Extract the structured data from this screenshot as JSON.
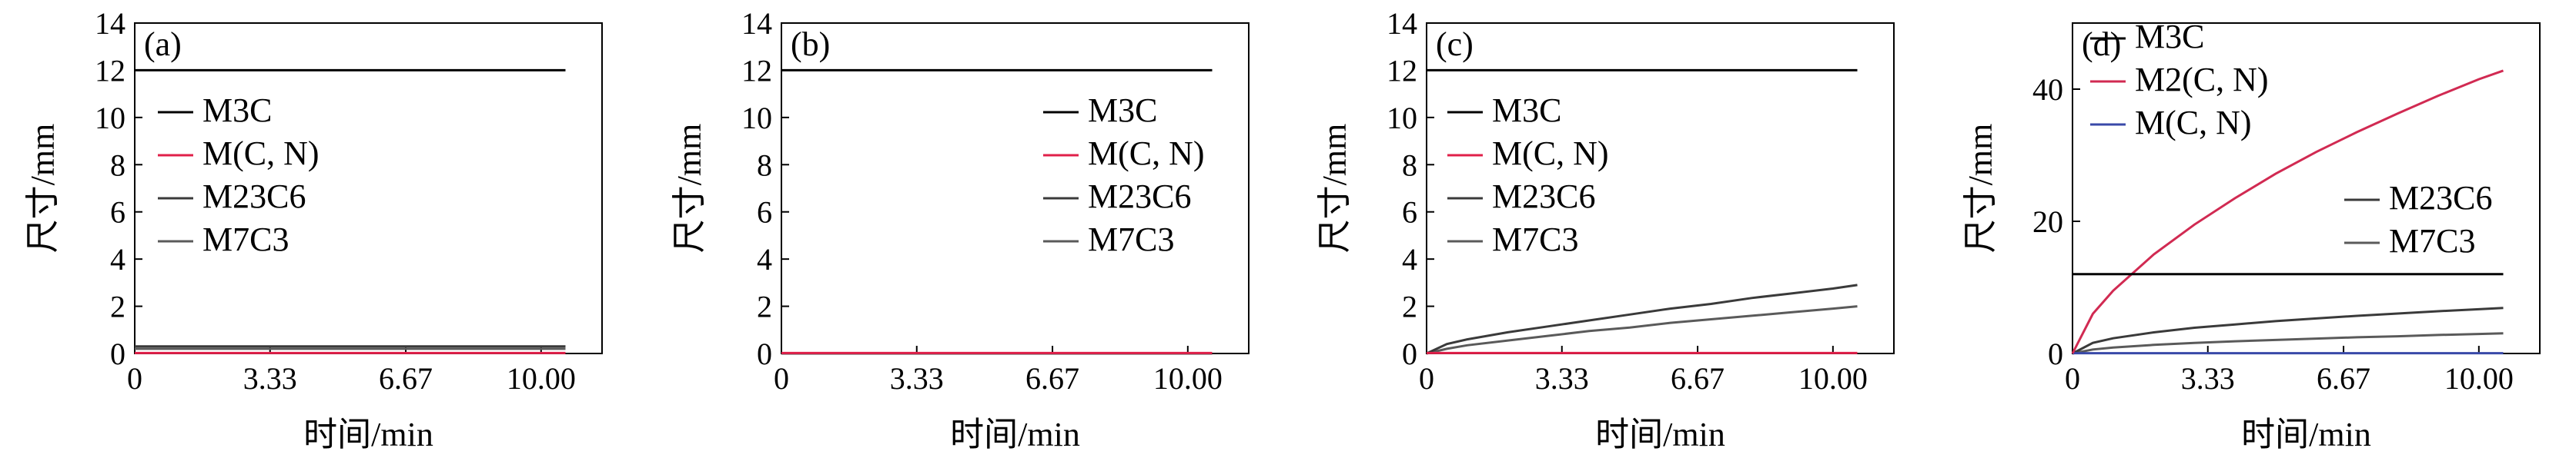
{
  "colors": {
    "M3C": "#000000",
    "M(C, N)": "#e0204a",
    "M2(C, N)": "#d12a52",
    "M(C, N)_d": "#3949a8",
    "M23C6": "#3a3a3a",
    "M7C3": "#5a5a5a"
  },
  "chart_data": [
    {
      "type": "line",
      "panel_label": "(a)",
      "xlabel": "时间/min",
      "ylabel": "尺寸/mm",
      "xlim": [
        0,
        11.5
      ],
      "ylim": [
        0,
        14
      ],
      "xticks": [
        "0",
        "3.33",
        "6.67",
        "10.00"
      ],
      "yticks": [
        "0",
        "2",
        "4",
        "6",
        "8",
        "10",
        "12",
        "14"
      ],
      "legend": {
        "placement": "center-left",
        "entries": [
          "M3C",
          "M(C, N)",
          "M23C6",
          "M7C3"
        ]
      },
      "series": [
        {
          "name": "M3C",
          "x": [
            0,
            10.6
          ],
          "y": [
            12,
            12
          ]
        },
        {
          "name": "M(C, N)",
          "x": [
            0,
            10.6
          ],
          "y": [
            0.02,
            0.02
          ]
        },
        {
          "name": "M23C6",
          "x": [
            0,
            10.6
          ],
          "y": [
            0.3,
            0.3
          ]
        },
        {
          "name": "M7C3",
          "x": [
            0,
            10.6
          ],
          "y": [
            0.2,
            0.2
          ]
        }
      ]
    },
    {
      "type": "line",
      "panel_label": "(b)",
      "xlabel": "时间/min",
      "ylabel": "尺寸/mm",
      "xlim": [
        0,
        11.5
      ],
      "ylim": [
        0,
        14
      ],
      "xticks": [
        "0",
        "3.33",
        "6.67",
        "10.00"
      ],
      "yticks": [
        "0",
        "2",
        "4",
        "6",
        "8",
        "10",
        "12",
        "14"
      ],
      "legend": {
        "placement": "center-right",
        "entries": [
          "M3C",
          "M(C, N)",
          "M23C6",
          "M7C3"
        ]
      },
      "series": [
        {
          "name": "M3C",
          "x": [
            0,
            10.6
          ],
          "y": [
            12,
            12
          ]
        },
        {
          "name": "M(C, N)",
          "x": [
            0,
            10.6
          ],
          "y": [
            0.02,
            0.02
          ]
        },
        {
          "name": "M23C6",
          "x": [
            0,
            10.6
          ],
          "y": [
            0.01,
            0.01
          ]
        },
        {
          "name": "M7C3",
          "x": [
            0,
            10.6
          ],
          "y": [
            0.0,
            0.0
          ]
        }
      ]
    },
    {
      "type": "line",
      "panel_label": "(c)",
      "xlabel": "时间/min",
      "ylabel": "尺寸/mm",
      "xlim": [
        0,
        11.5
      ],
      "ylim": [
        0,
        14
      ],
      "xticks": [
        "0",
        "3.33",
        "6.67",
        "10.00"
      ],
      "yticks": [
        "0",
        "2",
        "4",
        "6",
        "8",
        "10",
        "12",
        "14"
      ],
      "legend": {
        "placement": "center-left",
        "entries": [
          "M3C",
          "M(C, N)",
          "M23C6",
          "M7C3"
        ]
      },
      "series": [
        {
          "name": "M3C",
          "x": [
            0,
            10.6
          ],
          "y": [
            12,
            12
          ]
        },
        {
          "name": "M(C, N)",
          "x": [
            0,
            10.6
          ],
          "y": [
            0.02,
            0.02
          ]
        },
        {
          "name": "M23C6",
          "x": [
            0,
            0.5,
            1,
            2,
            3,
            4,
            5,
            6,
            7,
            8,
            9,
            10,
            10.6
          ],
          "y": [
            0,
            0.4,
            0.6,
            0.9,
            1.15,
            1.4,
            1.65,
            1.9,
            2.1,
            2.35,
            2.55,
            2.75,
            2.9
          ]
        },
        {
          "name": "M7C3",
          "x": [
            0,
            0.5,
            1,
            2,
            3,
            4,
            5,
            6,
            7,
            8,
            9,
            10,
            10.6
          ],
          "y": [
            0,
            0.2,
            0.35,
            0.55,
            0.75,
            0.95,
            1.1,
            1.3,
            1.45,
            1.6,
            1.75,
            1.9,
            2.0
          ]
        }
      ]
    },
    {
      "type": "line",
      "panel_label": "(d)",
      "xlabel": "时间/min",
      "ylabel": "尺寸/mm",
      "xlim": [
        0,
        11.5
      ],
      "ylim": [
        0,
        50
      ],
      "xticks": [
        "0",
        "3.33",
        "6.67",
        "10.00"
      ],
      "yticks": [
        "0",
        "20",
        "40"
      ],
      "legend": {
        "placement": "upper-left",
        "entries": [
          "M3C",
          "M2(C, N)",
          "M(C, N)",
          "M23C6",
          "M7C3"
        ]
      },
      "series": [
        {
          "name": "M3C",
          "x": [
            0,
            10.6
          ],
          "y": [
            12,
            12
          ]
        },
        {
          "name": "M2(C, N)",
          "x": [
            0,
            0.5,
            1,
            2,
            3,
            4,
            5,
            6,
            7,
            8,
            9,
            10,
            10.6
          ],
          "y": [
            0,
            6,
            9.5,
            15,
            19.5,
            23.5,
            27.2,
            30.5,
            33.5,
            36.3,
            39,
            41.5,
            42.8
          ]
        },
        {
          "name": "M(C, N)",
          "x": [
            0,
            10.6
          ],
          "y": [
            0.05,
            0.05
          ]
        },
        {
          "name": "M23C6",
          "x": [
            0,
            0.5,
            1,
            2,
            3,
            4,
            5,
            6,
            7,
            8,
            9,
            10,
            10.6
          ],
          "y": [
            0,
            1.6,
            2.3,
            3.2,
            3.9,
            4.4,
            4.9,
            5.3,
            5.7,
            6.05,
            6.4,
            6.7,
            6.9
          ]
        },
        {
          "name": "M7C3",
          "x": [
            0,
            0.5,
            1,
            2,
            3,
            4,
            5,
            6,
            7,
            8,
            9,
            10,
            10.6
          ],
          "y": [
            0,
            0.6,
            0.9,
            1.3,
            1.6,
            1.85,
            2.05,
            2.25,
            2.45,
            2.6,
            2.8,
            2.95,
            3.05
          ]
        }
      ]
    }
  ]
}
